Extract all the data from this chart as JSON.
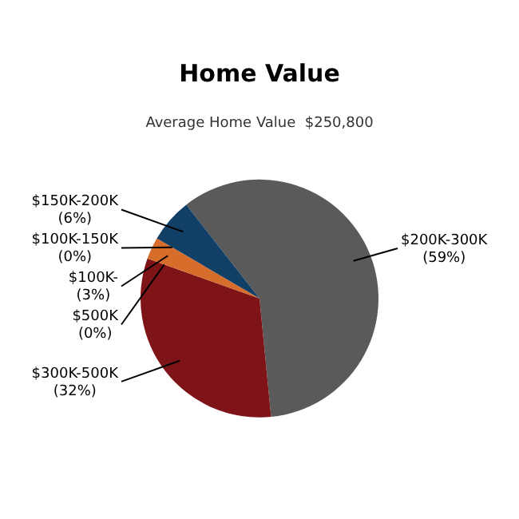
{
  "chart_data": {
    "type": "pie",
    "title": "Home Value",
    "subtitle": "Average Home Value  $250,800",
    "categories": [
      "$200K-300K",
      "$300K-500K",
      "$500K",
      "$100K-",
      "$100K-150K",
      "$150K-200K"
    ],
    "values": [
      59,
      32,
      0,
      3,
      0,
      6
    ],
    "value_labels": [
      "(59%)",
      "(32%)",
      "(0%)",
      "(3%)",
      "(0%)",
      "(6%)"
    ],
    "colors": [
      "#5a5a5a",
      "#7e1417",
      "#9a9a9a",
      "#d66d2a",
      "#3f7f3f",
      "#123f66"
    ]
  }
}
